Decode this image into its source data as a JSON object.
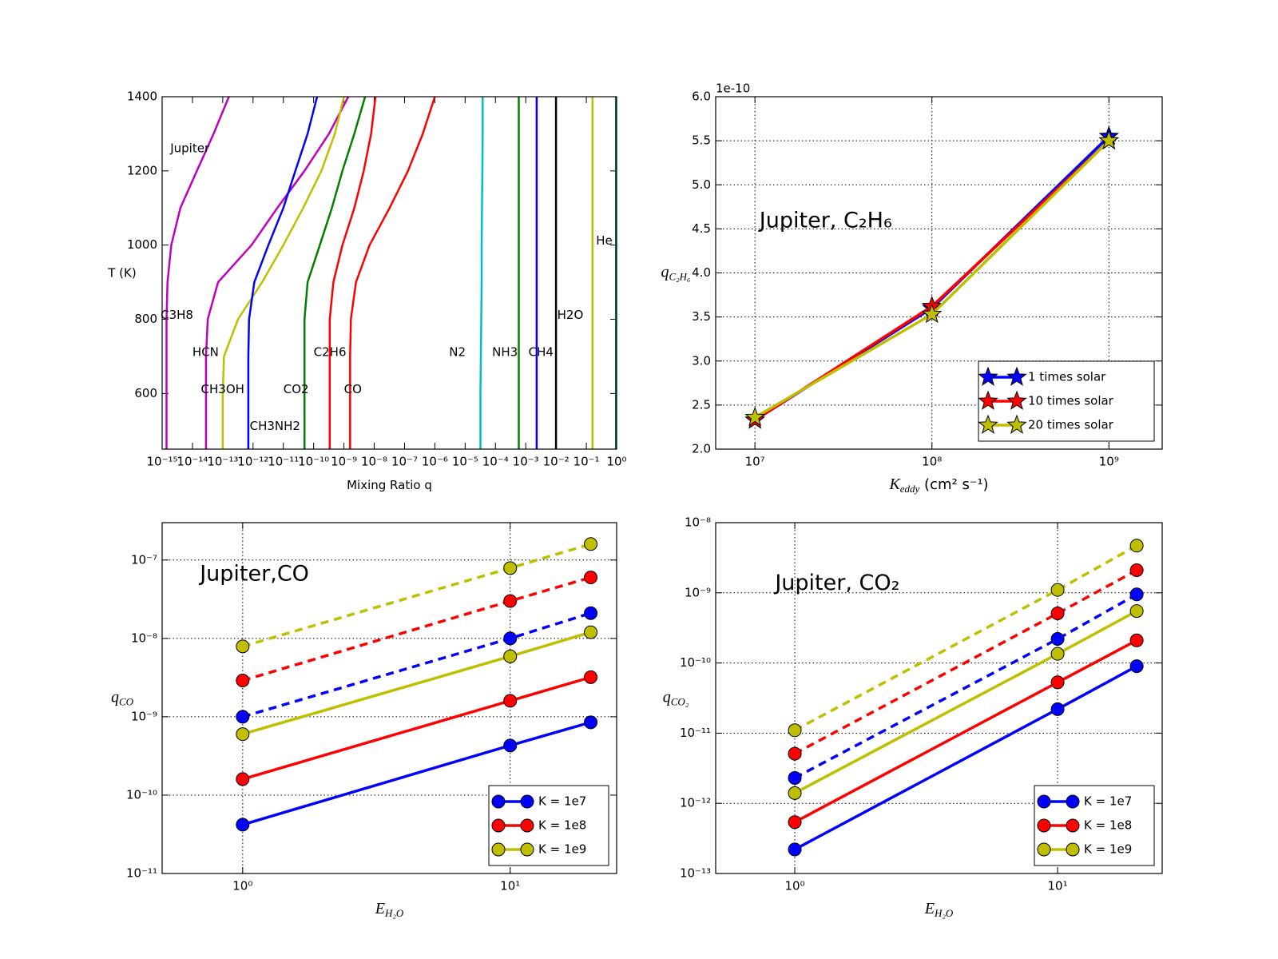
{
  "chart_data": [
    {
      "type": "line",
      "xscale": "log",
      "yscale": "linear",
      "grid": false,
      "xlabel": {
        "main": "Mixing Ratio q"
      },
      "ylabel": {
        "main": "T (K)"
      },
      "xlim": [
        1e-15,
        1
      ],
      "ylim": [
        450,
        1400
      ],
      "xticks": [
        {
          "value": 1e-15,
          "label": "10⁻¹⁵"
        },
        {
          "value": 1e-14,
          "label": "10⁻¹⁴"
        },
        {
          "value": 1e-13,
          "label": "10⁻¹³"
        },
        {
          "value": 1e-12,
          "label": "10⁻¹²"
        },
        {
          "value": 1e-11,
          "label": "10⁻¹¹"
        },
        {
          "value": 1e-10,
          "label": "10⁻¹⁰"
        },
        {
          "value": 1e-09,
          "label": "10⁻⁹"
        },
        {
          "value": 1e-08,
          "label": "10⁻⁸"
        },
        {
          "value": 1e-07,
          "label": "10⁻⁷"
        },
        {
          "value": 1e-06,
          "label": "10⁻⁶"
        },
        {
          "value": 1e-05,
          "label": "10⁻⁵"
        },
        {
          "value": 0.0001,
          "label": "10⁻⁴"
        },
        {
          "value": 0.001,
          "label": "10⁻³"
        },
        {
          "value": 0.01,
          "label": "10⁻²"
        },
        {
          "value": 0.1,
          "label": "10⁻¹"
        },
        {
          "value": 1,
          "label": "10⁰"
        }
      ],
      "yticks": [
        600,
        800,
        1000,
        1200,
        1400
      ],
      "y": [
        450,
        600,
        700,
        800,
        900,
        1000,
        1100,
        1200,
        1300,
        1400
      ],
      "series": [
        {
          "color": "#bf00bf",
          "values": [
            1.4e-15,
            1.4e-15,
            1.4e-15,
            1.4e-15,
            1.5e-15,
            2e-15,
            4e-15,
            1.4e-14,
            5e-14,
            1.6e-13
          ]
        },
        {
          "color": "#bf00bf",
          "values": [
            2.8e-14,
            2.8e-14,
            2.8e-14,
            3.2e-14,
            7e-14,
            8.9e-13,
            6.3e-12,
            5e-11,
            3.2e-10,
            1.4e-09
          ]
        },
        {
          "color": "#bfbf00",
          "values": [
            1e-13,
            1e-13,
            1.1e-13,
            3.2e-13,
            2e-12,
            1e-11,
            4.5e-11,
            1.8e-10,
            5e-10,
            1e-09
          ]
        },
        {
          "color": "#0000ff",
          "values": [
            7e-13,
            7e-13,
            7e-13,
            7.4e-13,
            1.1e-12,
            3.2e-12,
            1e-11,
            2.5e-11,
            6.3e-11,
            1.3e-10
          ]
        },
        {
          "color": "#008000",
          "values": [
            5e-11,
            5e-11,
            5e-11,
            5e-11,
            6.3e-11,
            1.6e-10,
            4e-10,
            8.9e-10,
            2.2e-09,
            5e-09
          ]
        },
        {
          "color": "#ff0000",
          "values": [
            3.4e-10,
            3.4e-10,
            3.4e-10,
            3.4e-10,
            4.5e-10,
            8.9e-10,
            2.2e-09,
            4.5e-09,
            7.9e-09,
            1.1e-08
          ]
        },
        {
          "color": "#ff0000",
          "values": [
            1.6e-09,
            1.6e-09,
            1.6e-09,
            1.7e-09,
            2.5e-09,
            7e-09,
            3.2e-08,
            1.3e-07,
            4e-07,
            1e-06
          ]
        },
        {
          "color": "#00bfbf",
          "values": [
            3.2e-05,
            3.2e-05,
            3.3e-05,
            3.4e-05,
            3.5e-05,
            3.5e-05,
            3.6e-05,
            3.7e-05,
            3.8e-05,
            3.8e-05
          ]
        },
        {
          "color": "#008000",
          "values": [
            0.00059,
            0.00059,
            0.00059,
            0.00059,
            0.00059,
            0.00059,
            0.00059,
            0.00059,
            0.00059,
            0.00059
          ]
        },
        {
          "color": "#0000ff",
          "values": [
            0.0023,
            0.0023,
            0.0023,
            0.0023,
            0.0023,
            0.0023,
            0.0023,
            0.0023,
            0.0023,
            0.0023
          ]
        },
        {
          "color": "#000000",
          "values": [
            0.01,
            0.01,
            0.01,
            0.01,
            0.01,
            0.01,
            0.01,
            0.01,
            0.01,
            0.01
          ]
        },
        {
          "color": "#bfbf00",
          "values": [
            0.16,
            0.16,
            0.16,
            0.16,
            0.16,
            0.16,
            0.16,
            0.16,
            0.16,
            0.16
          ]
        },
        {
          "color": "#006060",
          "values": [
            0.95,
            0.95,
            0.95,
            0.95,
            0.95,
            0.95,
            0.95,
            0.95,
            0.95,
            0.95
          ]
        }
      ],
      "annotations": [
        "Jupiter",
        "C3H8",
        "HCN",
        "CH3OH",
        "CH3NH2",
        "CO2",
        "C2H6",
        "CO",
        "N2",
        "NH3",
        "CH4",
        "H2O",
        "He"
      ]
    },
    {
      "type": "line",
      "xscale": "log",
      "yscale": "linear",
      "grid": true,
      "legend": "lower right",
      "annotation": "Jupiter, C₂H₆",
      "xlabel": {
        "main": "K",
        "sub": "eddy",
        "rest": " (cm²  s⁻¹)"
      },
      "ylabel": {
        "main": "q",
        "sub": "C₂H₆"
      },
      "y_offset_label": "1e-10",
      "xlim": [
        6000000.0,
        2000000000.0
      ],
      "ylim": [
        2e-10,
        6e-10
      ],
      "xticks": [
        {
          "value": 10000000.0,
          "label": "10⁷"
        },
        {
          "value": 100000000.0,
          "label": "10⁸"
        },
        {
          "value": 1000000000.0,
          "label": "10⁹"
        }
      ],
      "yticks": [
        {
          "value": 2e-10,
          "label": "2.0"
        },
        {
          "value": 2.5e-10,
          "label": "2.5"
        },
        {
          "value": 3e-10,
          "label": "3.0"
        },
        {
          "value": 3.5e-10,
          "label": "3.5"
        },
        {
          "value": 4e-10,
          "label": "4.0"
        },
        {
          "value": 4.5e-10,
          "label": "4.5"
        },
        {
          "value": 5e-10,
          "label": "5.0"
        },
        {
          "value": 5.5e-10,
          "label": "5.5"
        },
        {
          "value": 6e-10,
          "label": "6.0"
        }
      ],
      "x": [
        10000000.0,
        100000000.0,
        1000000000.0
      ],
      "series": [
        {
          "name": "1 times solar",
          "color": "#0000ff",
          "marker": "star",
          "values": [
            2.33e-10,
            3.6e-10,
            5.55e-10
          ]
        },
        {
          "name": "10 times solar",
          "color": "#ff0000",
          "marker": "star",
          "values": [
            2.33e-10,
            3.62e-10,
            5.5e-10
          ]
        },
        {
          "name": "20 times solar",
          "color": "#bfbf00",
          "marker": "star",
          "values": [
            2.36e-10,
            3.53e-10,
            5.5e-10
          ]
        }
      ]
    },
    {
      "type": "line",
      "xscale": "log",
      "yscale": "log",
      "grid": true,
      "legend": "lower right",
      "annotation": "Jupiter,CO",
      "xlabel": {
        "main": "E",
        "sub": "H₂O"
      },
      "ylabel": {
        "main": "q",
        "sub": "CO"
      },
      "xlim": [
        0.5,
        25
      ],
      "ylim": [
        1e-11,
        3e-07
      ],
      "xticks": [
        {
          "value": 1,
          "label": "10⁰"
        },
        {
          "value": 10,
          "label": "10¹"
        }
      ],
      "yticks": [
        {
          "value": 1e-11,
          "label": "10⁻¹¹"
        },
        {
          "value": 1e-10,
          "label": "10⁻¹⁰"
        },
        {
          "value": 1e-09,
          "label": "10⁻⁹"
        },
        {
          "value": 1e-08,
          "label": "10⁻⁸"
        },
        {
          "value": 1e-07,
          "label": "10⁻⁷"
        }
      ],
      "x": [
        1,
        10,
        20
      ],
      "series": [
        {
          "name": "K = 1e7",
          "color": "#0000ff",
          "marker": "circle",
          "values": [
            4.2e-11,
            4.3e-10,
            8.5e-10
          ]
        },
        {
          "name": "K = 1e8",
          "color": "#ff0000",
          "marker": "circle",
          "values": [
            1.6e-10,
            1.6e-09,
            3.2e-09
          ]
        },
        {
          "name": "K = 1e9",
          "color": "#bfbf00",
          "marker": "circle",
          "values": [
            6e-10,
            5.9e-09,
            1.2e-08
          ]
        },
        {
          "color": "#0000ff",
          "marker": "circle",
          "linestyle": "dashed",
          "values": [
            1e-09,
            1e-08,
            2.1e-08
          ]
        },
        {
          "color": "#ff0000",
          "marker": "circle",
          "linestyle": "dashed",
          "values": [
            2.9e-09,
            3e-08,
            6e-08
          ]
        },
        {
          "color": "#bfbf00",
          "marker": "circle",
          "linestyle": "dashed",
          "values": [
            7.9e-09,
            7.9e-08,
            1.6e-07
          ]
        }
      ]
    },
    {
      "type": "line",
      "xscale": "log",
      "yscale": "log",
      "grid": true,
      "legend": "lower right",
      "annotation": "Jupiter, CO₂",
      "xlabel": {
        "main": "E",
        "sub": "H₂O"
      },
      "ylabel": {
        "main": "q",
        "sub": "CO₂"
      },
      "xlim": [
        0.5,
        25
      ],
      "ylim": [
        1e-13,
        1e-08
      ],
      "xticks": [
        {
          "value": 1,
          "label": "10⁰"
        },
        {
          "value": 10,
          "label": "10¹"
        }
      ],
      "yticks": [
        {
          "value": 1e-13,
          "label": "10⁻¹³"
        },
        {
          "value": 1e-12,
          "label": "10⁻¹²"
        },
        {
          "value": 1e-11,
          "label": "10⁻¹¹"
        },
        {
          "value": 1e-10,
          "label": "10⁻¹⁰"
        },
        {
          "value": 1e-09,
          "label": "10⁻⁹"
        },
        {
          "value": 1e-08,
          "label": "10⁻⁸"
        }
      ],
      "x": [
        1,
        10,
        20
      ],
      "series": [
        {
          "name": "K = 1e7",
          "color": "#0000ff",
          "marker": "circle",
          "values": [
            2.2e-13,
            2.2e-11,
            9e-11
          ]
        },
        {
          "name": "K = 1e8",
          "color": "#ff0000",
          "marker": "circle",
          "values": [
            5.4e-13,
            5.3e-11,
            2.1e-10
          ]
        },
        {
          "name": "K = 1e9",
          "color": "#bfbf00",
          "marker": "circle",
          "values": [
            1.4e-12,
            1.35e-10,
            5.5e-10
          ]
        },
        {
          "color": "#0000ff",
          "marker": "circle",
          "linestyle": "dashed",
          "values": [
            2.3e-12,
            2.2e-10,
            9.5e-10
          ]
        },
        {
          "color": "#ff0000",
          "marker": "circle",
          "linestyle": "dashed",
          "values": [
            5.1e-12,
            5.1e-10,
            2.1e-09
          ]
        },
        {
          "color": "#bfbf00",
          "marker": "circle",
          "linestyle": "dashed",
          "values": [
            1.1e-11,
            1.1e-09,
            4.7e-09
          ]
        }
      ]
    }
  ]
}
